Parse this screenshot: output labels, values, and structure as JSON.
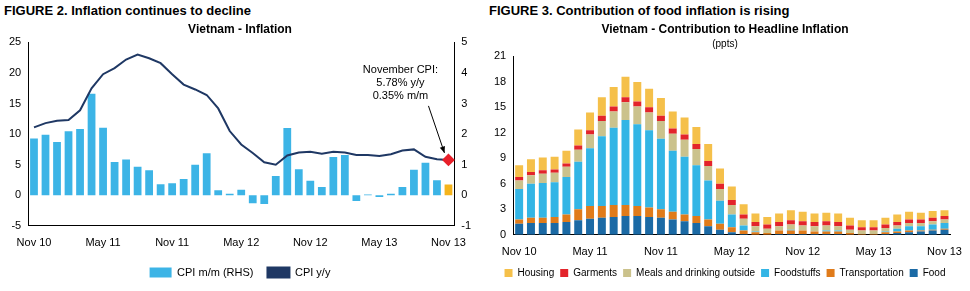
{
  "chart_data": [
    {
      "type": "bar",
      "title": "FIGURE 2. Inflation continues to decline",
      "subtitle": "Vietnam - Inflation",
      "categories": [
        "Nov 10",
        null,
        null,
        null,
        null,
        null,
        "May 11",
        null,
        null,
        null,
        null,
        null,
        "Nov 11",
        null,
        null,
        null,
        null,
        null,
        "May 12",
        null,
        null,
        null,
        null,
        null,
        "Nov 12",
        null,
        null,
        null,
        null,
        null,
        "May 13",
        null,
        null,
        null,
        null,
        null,
        "Nov 13"
      ],
      "series": [
        {
          "name": "CPI m/m (RHS)",
          "type": "bar",
          "axis": "y2",
          "color": "#3cb4e6",
          "colors": [
            "#3cb4e6",
            "#3cb4e6",
            "#3cb4e6",
            "#3cb4e6",
            "#3cb4e6",
            "#3cb4e6",
            "#3cb4e6",
            "#3cb4e6",
            "#3cb4e6",
            "#3cb4e6",
            "#3cb4e6",
            "#3cb4e6",
            "#3cb4e6",
            "#3cb4e6",
            "#3cb4e6",
            "#3cb4e6",
            "#3cb4e6",
            "#3cb4e6",
            "#3cb4e6",
            "#3cb4e6",
            "#3cb4e6",
            "#3cb4e6",
            "#3cb4e6",
            "#3cb4e6",
            "#3cb4e6",
            "#3cb4e6",
            "#3cb4e6",
            "#3cb4e6",
            "#3cb4e6",
            "#3cb4e6",
            "#3cb4e6",
            "#3cb4e6",
            "#3cb4e6",
            "#3cb4e6",
            "#3cb4e6",
            "#3cb4e6",
            "#f5b41c"
          ],
          "values": [
            1.86,
            1.98,
            1.74,
            2.09,
            2.17,
            3.32,
            2.21,
            1.09,
            1.17,
            0.93,
            0.82,
            0.36,
            0.39,
            0.53,
            1.0,
            1.37,
            0.16,
            0.05,
            0.18,
            -0.26,
            -0.29,
            0.63,
            2.2,
            0.85,
            0.47,
            0.27,
            1.25,
            1.32,
            -0.19,
            0.02,
            -0.06,
            0.05,
            0.27,
            0.83,
            1.06,
            0.49,
            0.35
          ]
        },
        {
          "name": "CPI y/y",
          "type": "line",
          "color": "#1f3864",
          "values": [
            11.1,
            11.8,
            12.2,
            12.3,
            13.9,
            17.5,
            19.8,
            20.8,
            22.2,
            23.0,
            22.4,
            21.6,
            19.8,
            18.1,
            17.3,
            16.4,
            14.2,
            10.5,
            8.3,
            6.9,
            5.4,
            5.0,
            6.5,
            7.0,
            7.1,
            6.8,
            7.1,
            7.0,
            6.6,
            6.6,
            6.4,
            6.7,
            7.3,
            7.5,
            6.3,
            5.9,
            5.78
          ]
        }
      ],
      "ylim": [
        -5,
        25
      ],
      "yticks": [
        -5,
        0,
        5,
        10,
        15,
        20,
        25
      ],
      "y2lim": [
        -1,
        5
      ],
      "y2ticks": [
        -1,
        0,
        1,
        2,
        3,
        4,
        5
      ],
      "annotations": [
        {
          "text": [
            "November CPI:",
            "5.78% y/y",
            "0.35% m/m"
          ]
        }
      ],
      "legend": "bottom",
      "grid": false
    },
    {
      "type": "bar",
      "title": "FIGURE 3. Contribution of food inflation is rising",
      "subtitle": [
        "Vietnam - Contribution to Headline Inflation",
        "(ppts)"
      ],
      "categories": [
        "Nov 10",
        null,
        null,
        null,
        null,
        null,
        "May 11",
        null,
        null,
        null,
        null,
        null,
        "Nov 11",
        null,
        null,
        null,
        null,
        null,
        "May 12",
        null,
        null,
        null,
        null,
        null,
        "Nov 12",
        null,
        null,
        null,
        null,
        null,
        "May 13",
        null,
        null,
        null,
        null,
        null,
        "Nov 13"
      ],
      "series": [
        {
          "name": "Food",
          "color": "#1b6aa5",
          "values": [
            1.3,
            1.4,
            1.4,
            1.4,
            1.5,
            1.7,
            1.9,
            2.0,
            2.1,
            2.2,
            2.2,
            2.1,
            2.0,
            1.8,
            1.6,
            1.4,
            1.0,
            0.6,
            0.3,
            0.1,
            0.0,
            0.0,
            0.1,
            0.1,
            0.1,
            0.1,
            0.1,
            0.1,
            0.0,
            0.0,
            0.0,
            0.1,
            0.2,
            0.3,
            0.4,
            0.5,
            0.6
          ]
        },
        {
          "name": "Transportation",
          "color": "#e07b1a",
          "values": [
            0.5,
            0.6,
            0.6,
            0.7,
            0.9,
            1.3,
            1.5,
            1.4,
            1.4,
            1.3,
            1.2,
            1.1,
            1.0,
            0.9,
            0.8,
            0.8,
            0.8,
            0.7,
            0.6,
            0.4,
            0.3,
            0.2,
            0.4,
            0.4,
            0.4,
            0.3,
            0.3,
            0.3,
            0.2,
            0.1,
            0.1,
            0.2,
            0.2,
            0.2,
            0.1,
            0.1,
            0.1
          ]
        },
        {
          "name": "Foodstuffs",
          "color": "#33b5e5",
          "values": [
            3.6,
            4.0,
            4.1,
            4.1,
            4.4,
            5.6,
            6.8,
            8.2,
            9.1,
            10.0,
            9.6,
            9.1,
            8.3,
            7.2,
            6.8,
            6.0,
            4.6,
            2.7,
            1.5,
            0.6,
            0.1,
            0.0,
            0.0,
            0.1,
            0.0,
            0.0,
            0.1,
            0.1,
            0.0,
            0.0,
            0.0,
            0.1,
            0.3,
            0.5,
            0.5,
            0.6,
            0.7
          ]
        },
        {
          "name": "Meals and drinking outside",
          "color": "#cbc28c",
          "values": [
            1.0,
            1.0,
            1.1,
            1.1,
            1.2,
            1.4,
            1.6,
            1.8,
            1.9,
            2.1,
            2.1,
            2.1,
            2.1,
            2.0,
            2.0,
            1.9,
            1.7,
            1.4,
            1.1,
            0.8,
            0.6,
            0.5,
            0.5,
            0.6,
            0.6,
            0.6,
            0.6,
            0.5,
            0.4,
            0.4,
            0.4,
            0.4,
            0.4,
            0.4,
            0.4,
            0.4,
            0.4
          ]
        },
        {
          "name": "Garments",
          "color": "#e3242b",
          "values": [
            0.4,
            0.4,
            0.4,
            0.4,
            0.4,
            0.5,
            0.5,
            0.6,
            0.6,
            0.6,
            0.6,
            0.6,
            0.6,
            0.6,
            0.6,
            0.6,
            0.6,
            0.6,
            0.6,
            0.5,
            0.5,
            0.5,
            0.5,
            0.5,
            0.5,
            0.5,
            0.5,
            0.5,
            0.5,
            0.4,
            0.4,
            0.4,
            0.4,
            0.4,
            0.4,
            0.4,
            0.4
          ]
        },
        {
          "name": "Housing",
          "color": "#f5c04a",
          "values": [
            1.4,
            1.5,
            1.5,
            1.5,
            1.5,
            1.9,
            2.1,
            2.2,
            2.3,
            2.4,
            2.3,
            2.2,
            2.1,
            2.0,
            2.0,
            2.0,
            2.0,
            1.8,
            1.6,
            1.2,
            1.0,
            0.9,
            1.0,
            1.2,
            1.1,
            1.0,
            1.0,
            1.0,
            0.9,
            0.8,
            0.8,
            0.8,
            0.9,
            0.9,
            0.8,
            0.8,
            0.7
          ]
        }
      ],
      "ylim": [
        0,
        21
      ],
      "yticks": [
        0,
        3,
        6,
        9,
        12,
        15,
        18,
        21
      ],
      "stacked": true,
      "legend": "bottom",
      "grid": false
    }
  ]
}
